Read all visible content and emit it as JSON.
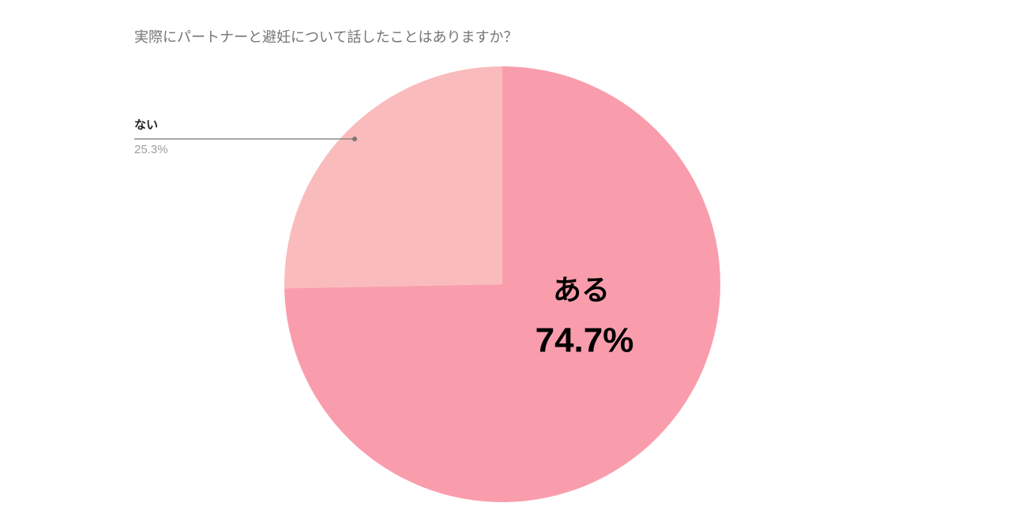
{
  "chart_data": {
    "type": "pie",
    "title": "実際にパートナーと避妊について話したことはありますか？",
    "categories": [
      "ある",
      "ない"
    ],
    "values": [
      74.7,
      25.3
    ],
    "value_labels": [
      "74.7%",
      "25.3%"
    ],
    "colors": [
      "#f99dac",
      "#fabbbc"
    ]
  }
}
